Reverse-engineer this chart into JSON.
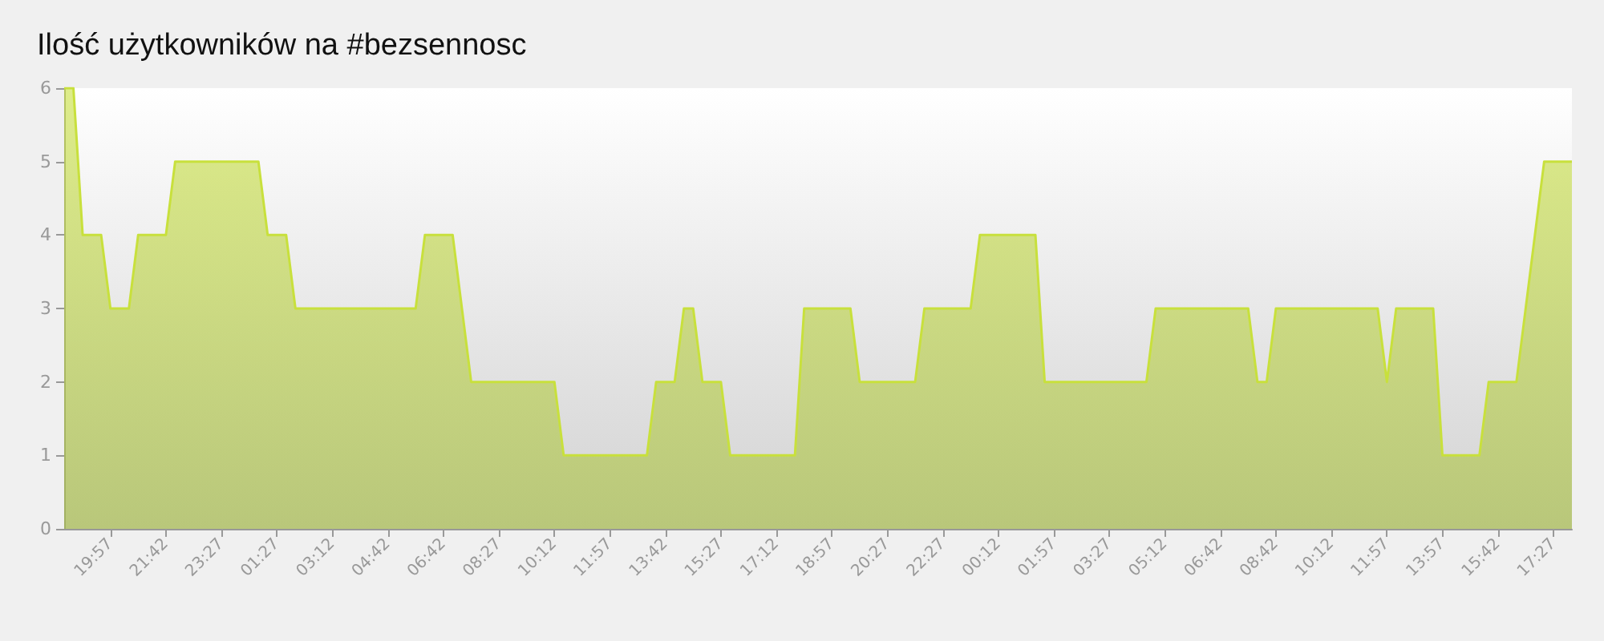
{
  "chart_data": {
    "type": "area",
    "title": "Ilość użytkowników na #bezsennosc",
    "categories": [
      null,
      null,
      null,
      null,
      null,
      "19:57",
      null,
      null,
      null,
      null,
      null,
      "21:42",
      null,
      null,
      null,
      null,
      null,
      "23:27",
      null,
      null,
      null,
      null,
      null,
      "01:27",
      null,
      null,
      null,
      null,
      null,
      "03:12",
      null,
      null,
      null,
      null,
      null,
      "04:42",
      null,
      null,
      null,
      null,
      null,
      "06:42",
      null,
      null,
      null,
      null,
      null,
      "08:27",
      null,
      null,
      null,
      null,
      null,
      "10:12",
      null,
      null,
      null,
      null,
      null,
      "11:57",
      null,
      null,
      null,
      null,
      null,
      "13:42",
      null,
      null,
      null,
      null,
      null,
      "15:27",
      null,
      null,
      null,
      null,
      null,
      "17:12",
      null,
      null,
      null,
      null,
      null,
      "18:57",
      null,
      null,
      null,
      null,
      null,
      "20:27",
      null,
      null,
      null,
      null,
      null,
      "22:27",
      null,
      null,
      null,
      null,
      null,
      "00:12",
      null,
      null,
      null,
      null,
      null,
      "01:57",
      null,
      null,
      null,
      null,
      null,
      "03:27",
      null,
      null,
      null,
      null,
      null,
      "05:12",
      null,
      null,
      null,
      null,
      null,
      "06:42",
      null,
      null,
      null,
      null,
      null,
      "08:42",
      null,
      null,
      null,
      null,
      null,
      "10:12",
      null,
      null,
      null,
      null,
      null,
      "11:57",
      null,
      null,
      null,
      null,
      null,
      "13:57",
      null,
      null,
      null,
      null,
      null,
      "15:42",
      null,
      null,
      null,
      null,
      null,
      "17:27",
      null,
      null
    ],
    "values": [
      6,
      6,
      4,
      4,
      4,
      3,
      3,
      3,
      4,
      4,
      4,
      4,
      5,
      5,
      5,
      5,
      5,
      5,
      5,
      5,
      5,
      5,
      4,
      4,
      4,
      3,
      3,
      3,
      3,
      3,
      3,
      3,
      3,
      3,
      3,
      3,
      3,
      3,
      3,
      4,
      4,
      4,
      4,
      3,
      2,
      2,
      2,
      2,
      2,
      2,
      2,
      2,
      2,
      2,
      1,
      1,
      1,
      1,
      1,
      1,
      1,
      1,
      1,
      1,
      2,
      2,
      2,
      3,
      3,
      2,
      2,
      2,
      1,
      1,
      1,
      1,
      1,
      1,
      1,
      1,
      3,
      3,
      3,
      3,
      3,
      3,
      2,
      2,
      2,
      2,
      2,
      2,
      2,
      3,
      3,
      3,
      3,
      3,
      3,
      4,
      4,
      4,
      4,
      4,
      4,
      4,
      2,
      2,
      2,
      2,
      2,
      2,
      2,
      2,
      2,
      2,
      2,
      2,
      3,
      3,
      3,
      3,
      3,
      3,
      3,
      3,
      3,
      3,
      3,
      2,
      2,
      3,
      3,
      3,
      3,
      3,
      3,
      3,
      3,
      3,
      3,
      3,
      3,
      2,
      3,
      3,
      3,
      3,
      3,
      1,
      1,
      1,
      1,
      1,
      2,
      2,
      2,
      2,
      3,
      4,
      5,
      5,
      5,
      5
    ],
    "color": "#c8e03c",
    "ylim": [
      0,
      6
    ],
    "yticks": [
      0,
      1,
      2,
      3,
      4,
      5,
      6
    ],
    "grid": false,
    "marker": "none",
    "line_style": "solid"
  }
}
